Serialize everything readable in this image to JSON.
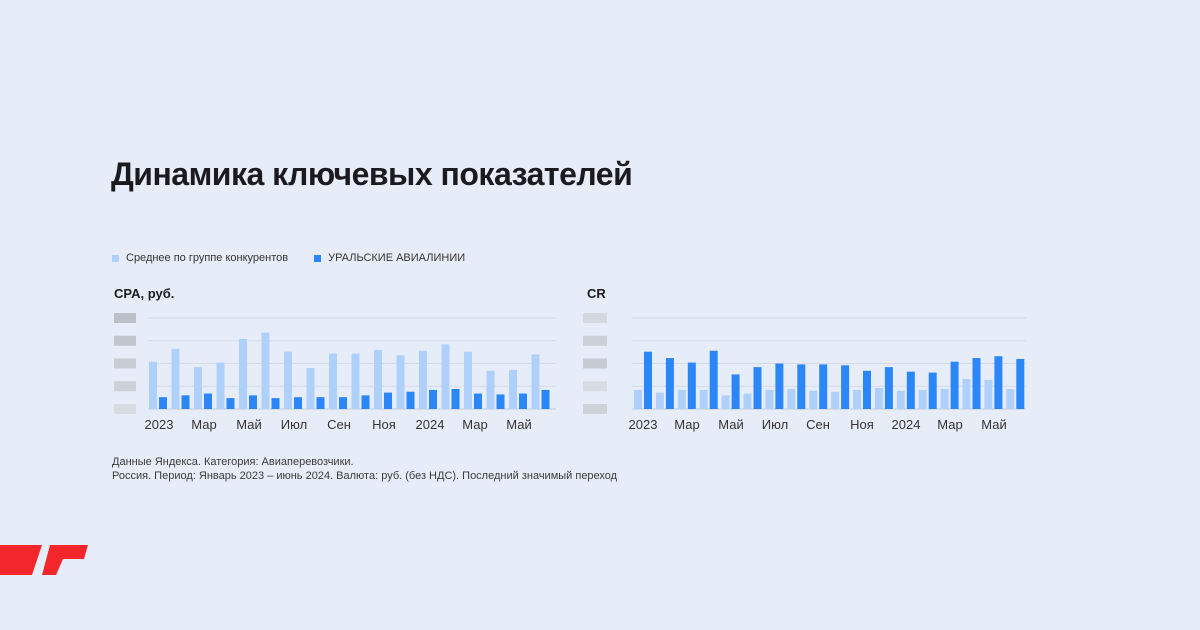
{
  "title": "Динамика ключевых показателей",
  "legend": {
    "competitors": "Среднее по группе конкурентов",
    "brand": "УРАЛЬСКИЕ АВИАЛИНИИ"
  },
  "colors": {
    "competitors": "#afd0fb",
    "brand": "#2b86f7",
    "background": "#e7edf8",
    "logo": "#f2262b"
  },
  "footnote": {
    "line1": "Данные Яндекса. Категория: Авиаперевозчики.",
    "line2": "Россия. Период: Январь 2023 – июнь 2024. Валюта: руб. (без НДС). Последний значимый переход"
  },
  "icons": {
    "logo": "yandex-red-stripe-logo"
  },
  "chart_data": [
    {
      "type": "bar",
      "title": "CPA, руб.",
      "y_tick_labels_obscured": true,
      "grid": true,
      "ylim": [
        0,
        100
      ],
      "month_count": 18,
      "x_tick_labels": [
        "2023",
        "Мар",
        "Май",
        "Июл",
        "Сен",
        "Ноя",
        "2024",
        "Мар",
        "Май"
      ],
      "series": [
        {
          "name": "Среднее по группе конкурентов",
          "values": [
            52,
            66,
            46,
            51,
            77,
            84,
            63,
            45,
            61,
            61,
            65,
            59,
            64,
            71,
            63,
            42,
            43,
            60
          ]
        },
        {
          "name": "УРАЛЬСКИЕ АВИАЛИНИИ",
          "values": [
            13,
            15,
            17,
            12,
            15,
            12,
            13,
            13,
            13,
            15,
            18,
            19,
            21,
            22,
            17,
            16,
            17,
            21
          ]
        }
      ]
    },
    {
      "type": "bar",
      "title": "CR",
      "y_tick_labels_obscured": true,
      "grid": true,
      "ylim": [
        0,
        100
      ],
      "month_count": 18,
      "x_tick_labels": [
        "2023",
        "Мар",
        "Май",
        "Июл",
        "Сен",
        "Ноя",
        "2024",
        "Мар",
        "Май"
      ],
      "series": [
        {
          "name": "Среднее по группе конкурентов",
          "values": [
            21,
            18,
            21,
            21,
            15,
            17,
            21,
            22,
            20,
            19,
            21,
            23,
            20,
            21,
            22,
            33,
            32,
            22
          ]
        },
        {
          "name": "УРАЛЬСКИЕ АВИАЛИНИИ",
          "values": [
            63,
            56,
            51,
            64,
            38,
            46,
            50,
            49,
            49,
            48,
            42,
            46,
            41,
            40,
            52,
            56,
            58,
            55
          ]
        }
      ]
    }
  ]
}
